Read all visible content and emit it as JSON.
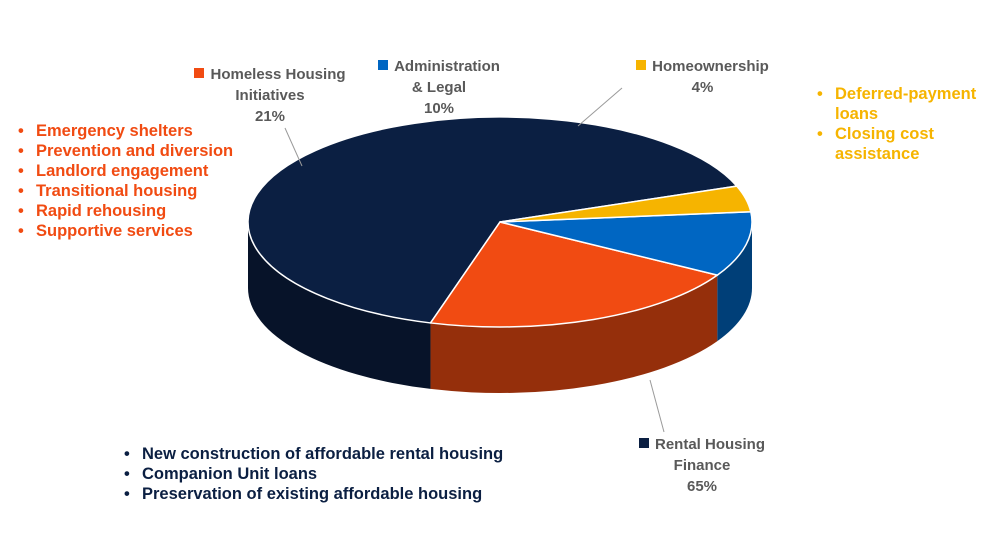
{
  "colors": {
    "homeless": "#F14B12",
    "admin": "#0066C2",
    "homeownership": "#F6B400",
    "rental": "#0B1F42",
    "label_text": "#595959"
  },
  "chart_data": {
    "type": "pie",
    "title": "",
    "slices": [
      {
        "name": "Rental Housing Finance",
        "value": 65,
        "label": "65%"
      },
      {
        "name": "Homeless Housing Initiatives",
        "value": 21,
        "label": "21%"
      },
      {
        "name": "Administration & Legal",
        "value": 10,
        "label": "10%"
      },
      {
        "name": "Homeownership",
        "value": 4,
        "label": "4%"
      }
    ],
    "legend_placement": "labels-outside",
    "three_d": true
  },
  "labels": {
    "homeless": {
      "line1": "Homeless Housing",
      "line2": "Initiatives",
      "pct": "21%"
    },
    "admin": {
      "line1": "Administration",
      "line2": "& Legal",
      "pct": "10%"
    },
    "homeownership": {
      "line1": "Homeownership",
      "pct": "4%"
    },
    "rental": {
      "line1": "Rental Housing",
      "line2": "Finance",
      "pct": "65%"
    }
  },
  "notes": {
    "homeless": [
      "Emergency shelters",
      "Prevention and diversion",
      "Landlord engagement",
      "Transitional housing",
      "Rapid rehousing",
      "Supportive services"
    ],
    "homeownership": [
      "Deferred-payment loans",
      "Closing cost assistance"
    ],
    "rental": [
      "New construction of affordable rental housing",
      "Companion Unit loans",
      "Preservation of existing affordable housing"
    ]
  }
}
